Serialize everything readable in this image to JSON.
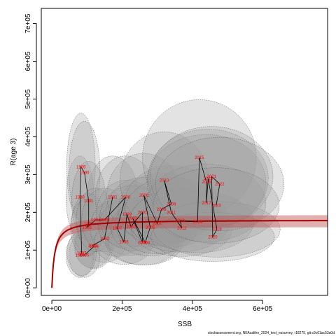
{
  "chart_data": {
    "type": "scatter",
    "xlabel": "SSB",
    "ylabel": "R(age 3)",
    "xlim": [
      -30000,
      785000
    ],
    "ylim": [
      -20000,
      740000
    ],
    "x_ticks": [
      {
        "v": 0,
        "label": "0e+00"
      },
      {
        "v": 200000,
        "label": "2e+05"
      },
      {
        "v": 400000,
        "label": "4e+05"
      },
      {
        "v": 600000,
        "label": "6e+05"
      }
    ],
    "y_ticks": [
      {
        "v": 0,
        "label": "0e+00"
      },
      {
        "v": 100000,
        "label": "1e+05"
      },
      {
        "v": 200000,
        "label": "2e+05"
      },
      {
        "v": 300000,
        "label": "3e+05"
      },
      {
        "v": 400000,
        "label": "4e+05"
      },
      {
        "v": 500000,
        "label": "5e+05"
      },
      {
        "v": 600000,
        "label": "6e+05"
      },
      {
        "v": 700000,
        "label": "7e+05"
      }
    ],
    "points": [
      {
        "year": "1981",
        "x": 173000,
        "y": 240000
      },
      {
        "year": "1982",
        "x": 150000,
        "y": 130000
      },
      {
        "year": "1983",
        "x": 116000,
        "y": 112000
      },
      {
        "year": "1984",
        "x": 120000,
        "y": 110000
      },
      {
        "year": "1985",
        "x": 93000,
        "y": 87000
      },
      {
        "year": "1986",
        "x": 80000,
        "y": 87000
      },
      {
        "year": "1987",
        "x": 85000,
        "y": 92000
      },
      {
        "year": "1988",
        "x": 80000,
        "y": 240000
      },
      {
        "year": "1989",
        "x": 83000,
        "y": 320000
      },
      {
        "year": "1990",
        "x": 93000,
        "y": 305000
      },
      {
        "year": "1991",
        "x": 105000,
        "y": 230000
      },
      {
        "year": "1992",
        "x": 105000,
        "y": 170000
      },
      {
        "year": "1993",
        "x": 100000,
        "y": 160000
      },
      {
        "year": "1994",
        "x": 125000,
        "y": 180000
      },
      {
        "year": "1995",
        "x": 150000,
        "y": 180000
      },
      {
        "year": "1996",
        "x": 210000,
        "y": 240000
      },
      {
        "year": "1997",
        "x": 186000,
        "y": 158000
      },
      {
        "year": "1998",
        "x": 205000,
        "y": 122000
      },
      {
        "year": "1999",
        "x": 214000,
        "y": 195000
      },
      {
        "year": "2000",
        "x": 225000,
        "y": 162000
      },
      {
        "year": "2001",
        "x": 258000,
        "y": 200000
      },
      {
        "year": "2002",
        "x": 258000,
        "y": 120000
      },
      {
        "year": "2003",
        "x": 230000,
        "y": 185000
      },
      {
        "year": "2004",
        "x": 266000,
        "y": 120000
      },
      {
        "year": "2005",
        "x": 280000,
        "y": 160000
      },
      {
        "year": "2006",
        "x": 262000,
        "y": 245000
      },
      {
        "year": "2007",
        "x": 300000,
        "y": 170000
      },
      {
        "year": "2008",
        "x": 312000,
        "y": 208000
      },
      {
        "year": "2009",
        "x": 340000,
        "y": 222000
      },
      {
        "year": "2010",
        "x": 320000,
        "y": 285000
      },
      {
        "year": "2011",
        "x": 340000,
        "y": 200000
      },
      {
        "year": "2012",
        "x": 370000,
        "y": 158000
      },
      {
        "year": "2013",
        "x": 365000,
        "y": 178000
      },
      {
        "year": "2014",
        "x": 415000,
        "y": 175000
      },
      {
        "year": "2015",
        "x": 420000,
        "y": 345000
      },
      {
        "year": "2016",
        "x": 440000,
        "y": 280000
      },
      {
        "year": "2017",
        "x": 440000,
        "y": 225000
      },
      {
        "year": "2018",
        "x": 445000,
        "y": 290000
      },
      {
        "year": "2019",
        "x": 470000,
        "y": 155000
      },
      {
        "year": "2020",
        "x": 458000,
        "y": 135000
      },
      {
        "year": "2021",
        "x": 455000,
        "y": 295000
      },
      {
        "year": "2022",
        "x": 478000,
        "y": 275000
      },
      {
        "year": "2023",
        "x": 468000,
        "y": 218000
      }
    ],
    "fit_curve": {
      "a": 180000,
      "b": 8000,
      "ci_low_frac": 0.9,
      "ci_high_frac": 1.08
    },
    "footnote": "stockassessment.org, NEAsalthe_2024_test_nosurvey, r18275, git:c9c61ac53a0d"
  }
}
